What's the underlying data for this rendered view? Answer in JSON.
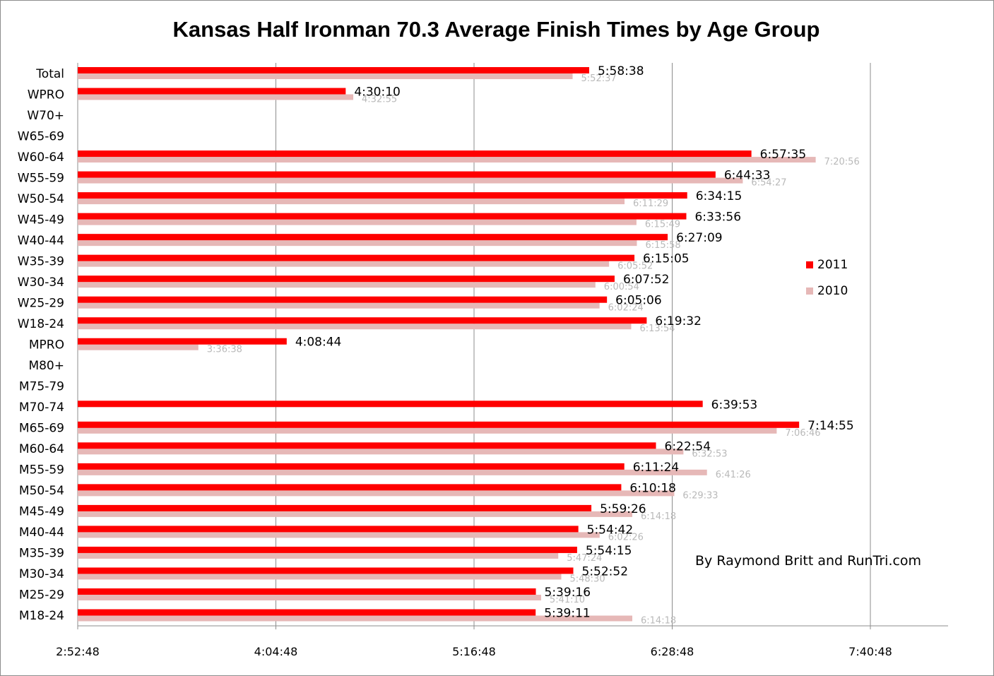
{
  "chart_data": {
    "type": "bar",
    "orientation": "horizontal",
    "title": "Kansas Half Ironman 70.3 Average Finish Times by Age Group",
    "categories": [
      "Total",
      "WPRO",
      "W70+",
      "W65-69",
      "W60-64",
      "W55-59",
      "W50-54",
      "W45-49",
      "W40-44",
      "W35-39",
      "W30-34",
      "W25-29",
      "W18-24",
      "MPRO",
      "M80+",
      "M75-79",
      "M70-74",
      "M65-69",
      "M60-64",
      "M55-59",
      "M50-54",
      "M45-49",
      "M40-44",
      "M35-39",
      "M30-34",
      "M25-29",
      "M18-24"
    ],
    "series": [
      {
        "name": "2011",
        "color": "#ff0000",
        "values": [
          "5:58:38",
          "4:30:10",
          null,
          null,
          "6:57:35",
          "6:44:33",
          "6:34:15",
          "6:33:56",
          "6:27:09",
          "6:15:05",
          "6:07:52",
          "6:05:06",
          "6:19:32",
          "4:08:44",
          null,
          null,
          "6:39:53",
          "7:14:55",
          "6:22:54",
          "6:11:24",
          "6:10:18",
          "5:59:26",
          "5:54:42",
          "5:54:15",
          "5:52:52",
          "5:39:16",
          "5:39:11"
        ]
      },
      {
        "name": "2010",
        "color": "#e6b8b7",
        "values": [
          "5:52:37",
          "4:32:55",
          null,
          null,
          "7:20:56",
          "6:54:27",
          "6:11:29",
          "6:15:49",
          "6:15:58",
          "6:05:52",
          "6:00:54",
          "6:02:24",
          "6:13:54",
          "3:36:38",
          null,
          null,
          null,
          "7:06:46",
          "6:32:53",
          "6:41:26",
          "6:29:33",
          "6:14:18",
          "6:02:26",
          "5:47:24",
          "5:48:30",
          "5:41:10",
          "6:14:18"
        ]
      }
    ],
    "x_ticks": [
      "2:52:48",
      "4:04:48",
      "5:16:48",
      "6:28:48",
      "7:40:48"
    ],
    "xlim": [
      "2:52:48",
      "8:24:00"
    ],
    "grid": true,
    "legend": "right"
  },
  "legend": {
    "items": [
      {
        "label": "2011",
        "color": "#ff0000"
      },
      {
        "label": "2010",
        "color": "#e6b8b7"
      }
    ]
  },
  "credit": "By Raymond Britt and RunTri.com"
}
